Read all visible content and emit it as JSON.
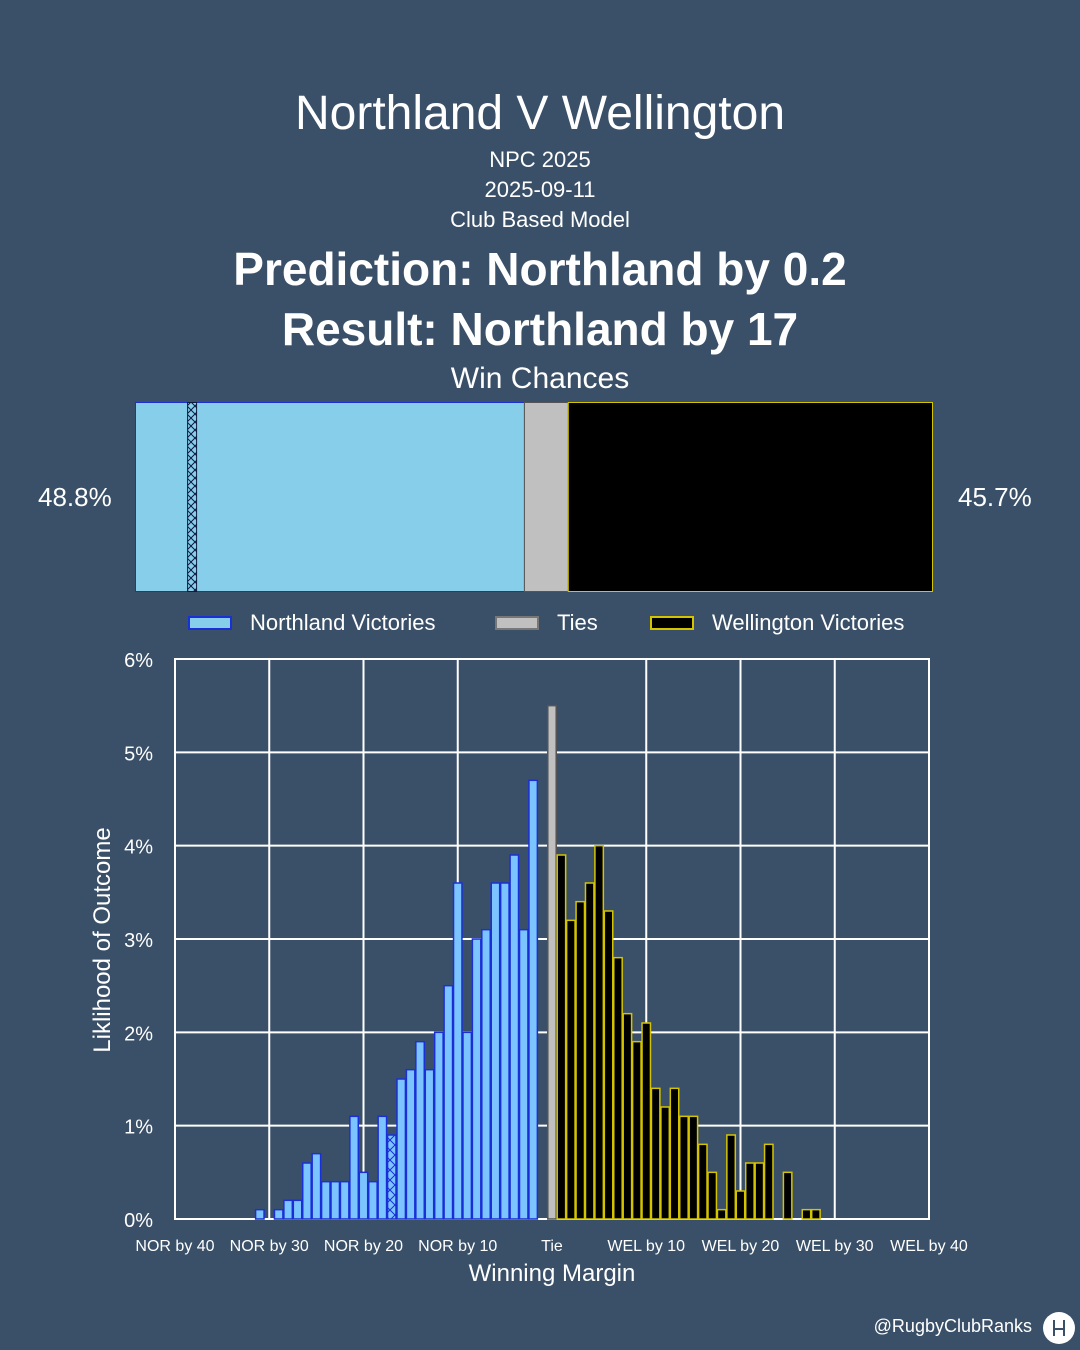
{
  "header": {
    "title": "Northland V Wellington",
    "competition": "NPC 2025",
    "date": "2025-09-11",
    "model": "Club Based Model",
    "prediction": "Prediction: Northland by 0.2",
    "result": "Result: Northland by 17",
    "win_chances_label": "Win Chances"
  },
  "win_chances": {
    "northland_pct_label": "48.8%",
    "wellington_pct_label": "45.7%",
    "northland": 48.8,
    "tie": 5.5,
    "wellington": 45.7,
    "result_marker_margin": 17
  },
  "legend": {
    "northland": "Northland Victories",
    "ties": "Ties",
    "wellington": "Wellington Victories"
  },
  "colors": {
    "background": "#3a5068",
    "northland_fill": "#87ceeb",
    "northland_edge": "#1a2fd6",
    "northland_hist": "#7cc4ff",
    "tie_fill": "#c0c0c0",
    "wellington_fill": "#000000",
    "wellington_edge": "#d4c400"
  },
  "credit": "@RugbyClubRanks",
  "chart_data": {
    "type": "bar",
    "title": "",
    "xlabel": "Winning Margin",
    "ylabel": "Liklihood of Outcome",
    "ylim": [
      0,
      6
    ],
    "xlim": [
      -40,
      40
    ],
    "x_ticks": [
      {
        "value": -40,
        "label": "NOR by 40"
      },
      {
        "value": -30,
        "label": "NOR by 30"
      },
      {
        "value": -20,
        "label": "NOR by 20"
      },
      {
        "value": -10,
        "label": "NOR by 10"
      },
      {
        "value": 0,
        "label": "Tie"
      },
      {
        "value": 10,
        "label": "WEL by 10"
      },
      {
        "value": 20,
        "label": "WEL by 20"
      },
      {
        "value": 30,
        "label": "WEL by 30"
      },
      {
        "value": 40,
        "label": "WEL by 40"
      }
    ],
    "y_ticks": [
      {
        "value": 0,
        "label": "0%"
      },
      {
        "value": 1,
        "label": "1%"
      },
      {
        "value": 2,
        "label": "2%"
      },
      {
        "value": 3,
        "label": "3%"
      },
      {
        "value": 4,
        "label": "4%"
      },
      {
        "value": 5,
        "label": "5%"
      },
      {
        "value": 6,
        "label": "6%"
      }
    ],
    "grid": true,
    "actual_result_margin": -17,
    "series": [
      {
        "name": "Northland Victories",
        "x": [
          -31,
          -29,
          -28,
          -27,
          -26,
          -25,
          -24,
          -23,
          -22,
          -21,
          -20,
          -19,
          -18,
          -17,
          -16,
          -15,
          -14,
          -13,
          -12,
          -11,
          -10,
          -9,
          -8,
          -7,
          -6,
          -5,
          -4,
          -3,
          -2,
          -1
        ],
        "values": [
          0.1,
          0.1,
          0.2,
          0.2,
          0.6,
          0.7,
          0.4,
          0.4,
          0.4,
          1.1,
          0.5,
          0.4,
          1.1,
          0.9,
          1.5,
          1.6,
          1.9,
          1.6,
          2.0,
          2.5,
          3.6,
          2.0,
          3.0,
          3.1,
          3.6,
          3.6,
          3.9,
          3.1,
          4.7,
          0.0
        ]
      },
      {
        "name": "Ties",
        "x": [
          0
        ],
        "values": [
          5.5
        ]
      },
      {
        "name": "Wellington Victories",
        "x": [
          1,
          2,
          3,
          4,
          5,
          6,
          7,
          8,
          9,
          10,
          11,
          12,
          13,
          14,
          15,
          16,
          17,
          18,
          19,
          20,
          21,
          22,
          23,
          24,
          25,
          26,
          27,
          28,
          30,
          31
        ],
        "values": [
          3.9,
          3.2,
          3.4,
          3.6,
          4.0,
          3.3,
          2.8,
          2.2,
          1.9,
          2.1,
          1.4,
          1.2,
          1.4,
          1.1,
          1.1,
          0.8,
          0.5,
          0.1,
          0.9,
          0.3,
          0.6,
          0.6,
          0.8,
          0.0,
          0.5,
          0.0,
          0.1,
          0.1,
          0.0,
          0.0
        ]
      }
    ]
  }
}
